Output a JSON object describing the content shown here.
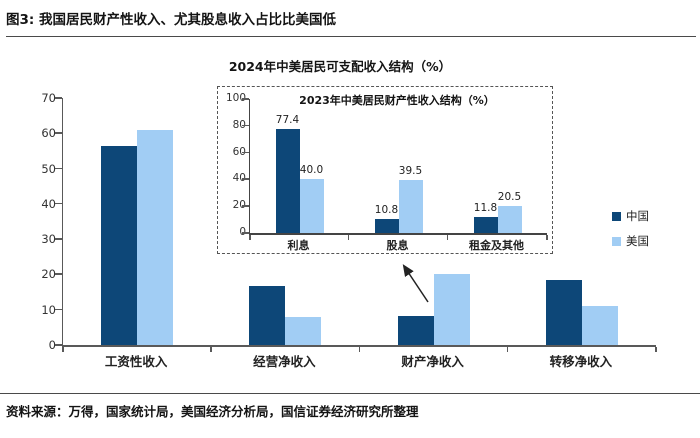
{
  "header": {
    "title": "图3: 我国居民财产性收入、尤其股息收入占比比美国低"
  },
  "footer": {
    "source_label": "资料来源：万得，国家统计局，美国经济分析局，国信证券经济研究所整理"
  },
  "colors": {
    "china": "#0d4778",
    "us": "#a1cdf4",
    "axis": "#595959"
  },
  "legend": {
    "items": [
      {
        "label": "中国",
        "color_key": "china"
      },
      {
        "label": "美国",
        "color_key": "us"
      }
    ]
  },
  "chart_data": [
    {
      "type": "bar",
      "title": "2024年中美居民可支配收入结构（%）",
      "categories": [
        "工资性收入",
        "经营净收入",
        "财产净收入",
        "转移净收入"
      ],
      "series": [
        {
          "name": "中国",
          "values": [
            56.5,
            16.7,
            8.3,
            18.5
          ]
        },
        {
          "name": "美国",
          "values": [
            61.0,
            8.0,
            20.0,
            11.0
          ]
        }
      ],
      "ylim": [
        0,
        70
      ],
      "yticks": [
        0,
        10,
        20,
        30,
        40,
        50,
        60,
        70
      ],
      "grid": false,
      "legend_position": "right",
      "data_labels": false
    },
    {
      "type": "bar",
      "title": "2023年中美居民财产性收入结构（%）",
      "categories": [
        "利息",
        "股息",
        "租金及其他"
      ],
      "series": [
        {
          "name": "中国",
          "values": [
            77.4,
            10.8,
            11.8
          ],
          "value_labels": [
            "77.4",
            "10.8",
            "11.8"
          ]
        },
        {
          "name": "美国",
          "values": [
            40.0,
            39.5,
            20.5
          ],
          "value_labels": [
            "40.0",
            "39.5",
            "20.5"
          ]
        }
      ],
      "ylim": [
        0,
        100
      ],
      "yticks": [
        0,
        20,
        40,
        60,
        80,
        100
      ],
      "grid": false,
      "data_labels": true
    }
  ]
}
